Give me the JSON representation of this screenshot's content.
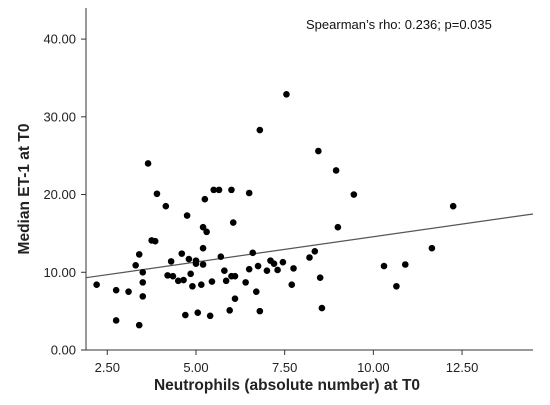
{
  "chart_data": {
    "type": "scatter",
    "title": "",
    "xlabel": "Neutrophils (absolute number) at T0",
    "ylabel": "Median ET-1 at T0",
    "annotation": "Spearman’s rho: 0.236; p=0.035",
    "xlim": [
      1.9,
      14.5
    ],
    "ylim": [
      0,
      44
    ],
    "x_ticks": [
      2.5,
      5.0,
      7.5,
      10.0,
      12.5
    ],
    "x_tick_labels": [
      "2.50",
      "5.00",
      "7.50",
      "10.00",
      "12.50"
    ],
    "y_ticks": [
      0,
      10,
      20,
      30,
      40
    ],
    "y_tick_labels": [
      "0.00",
      "10.00",
      "20.00",
      "30.00",
      "40.00"
    ],
    "grid": false,
    "fit_line": {
      "x": [
        1.9,
        14.5
      ],
      "y": [
        9.3,
        17.5
      ]
    },
    "point_color": "#000000",
    "line_color": "#555555",
    "points": [
      [
        2.2,
        8.4
      ],
      [
        2.75,
        7.7
      ],
      [
        2.75,
        3.8
      ],
      [
        3.1,
        7.5
      ],
      [
        3.3,
        10.9
      ],
      [
        3.4,
        12.3
      ],
      [
        3.4,
        3.2
      ],
      [
        3.5,
        10.0
      ],
      [
        3.5,
        8.7
      ],
      [
        3.5,
        6.9
      ],
      [
        3.65,
        24.0
      ],
      [
        3.75,
        14.1
      ],
      [
        3.85,
        14.0
      ],
      [
        3.9,
        20.1
      ],
      [
        4.15,
        18.5
      ],
      [
        4.2,
        9.6
      ],
      [
        4.3,
        11.4
      ],
      [
        4.35,
        9.5
      ],
      [
        4.5,
        8.9
      ],
      [
        4.6,
        12.4
      ],
      [
        4.65,
        9.0
      ],
      [
        4.7,
        4.5
      ],
      [
        4.75,
        17.3
      ],
      [
        4.8,
        11.7
      ],
      [
        4.85,
        9.8
      ],
      [
        4.9,
        8.2
      ],
      [
        5.0,
        11.1
      ],
      [
        5.0,
        11.5
      ],
      [
        5.05,
        4.8
      ],
      [
        5.15,
        8.4
      ],
      [
        5.2,
        13.1
      ],
      [
        5.2,
        15.8
      ],
      [
        5.2,
        11.0
      ],
      [
        5.25,
        19.4
      ],
      [
        5.3,
        15.2
      ],
      [
        5.4,
        4.4
      ],
      [
        5.45,
        8.8
      ],
      [
        5.5,
        20.6
      ],
      [
        5.65,
        20.6
      ],
      [
        5.7,
        12.0
      ],
      [
        5.8,
        10.2
      ],
      [
        5.85,
        8.9
      ],
      [
        5.95,
        5.1
      ],
      [
        6.0,
        20.6
      ],
      [
        6.0,
        9.5
      ],
      [
        6.05,
        16.4
      ],
      [
        6.1,
        9.5
      ],
      [
        6.1,
        6.6
      ],
      [
        6.4,
        8.7
      ],
      [
        6.5,
        20.2
      ],
      [
        6.5,
        10.4
      ],
      [
        6.6,
        12.5
      ],
      [
        6.7,
        7.5
      ],
      [
        6.75,
        10.8
      ],
      [
        6.8,
        5.0
      ],
      [
        6.8,
        28.3
      ],
      [
        7.0,
        10.2
      ],
      [
        7.1,
        11.5
      ],
      [
        7.2,
        11.1
      ],
      [
        7.3,
        10.3
      ],
      [
        7.45,
        11.3
      ],
      [
        7.55,
        32.9
      ],
      [
        7.7,
        8.4
      ],
      [
        7.75,
        10.5
      ],
      [
        8.2,
        11.9
      ],
      [
        8.35,
        12.7
      ],
      [
        8.45,
        25.6
      ],
      [
        8.5,
        9.3
      ],
      [
        8.55,
        5.4
      ],
      [
        8.95,
        23.1
      ],
      [
        9.0,
        15.8
      ],
      [
        9.45,
        20.0
      ],
      [
        10.3,
        10.8
      ],
      [
        10.65,
        8.2
      ],
      [
        10.9,
        11.0
      ],
      [
        11.65,
        13.1
      ],
      [
        12.25,
        18.5
      ]
    ]
  }
}
